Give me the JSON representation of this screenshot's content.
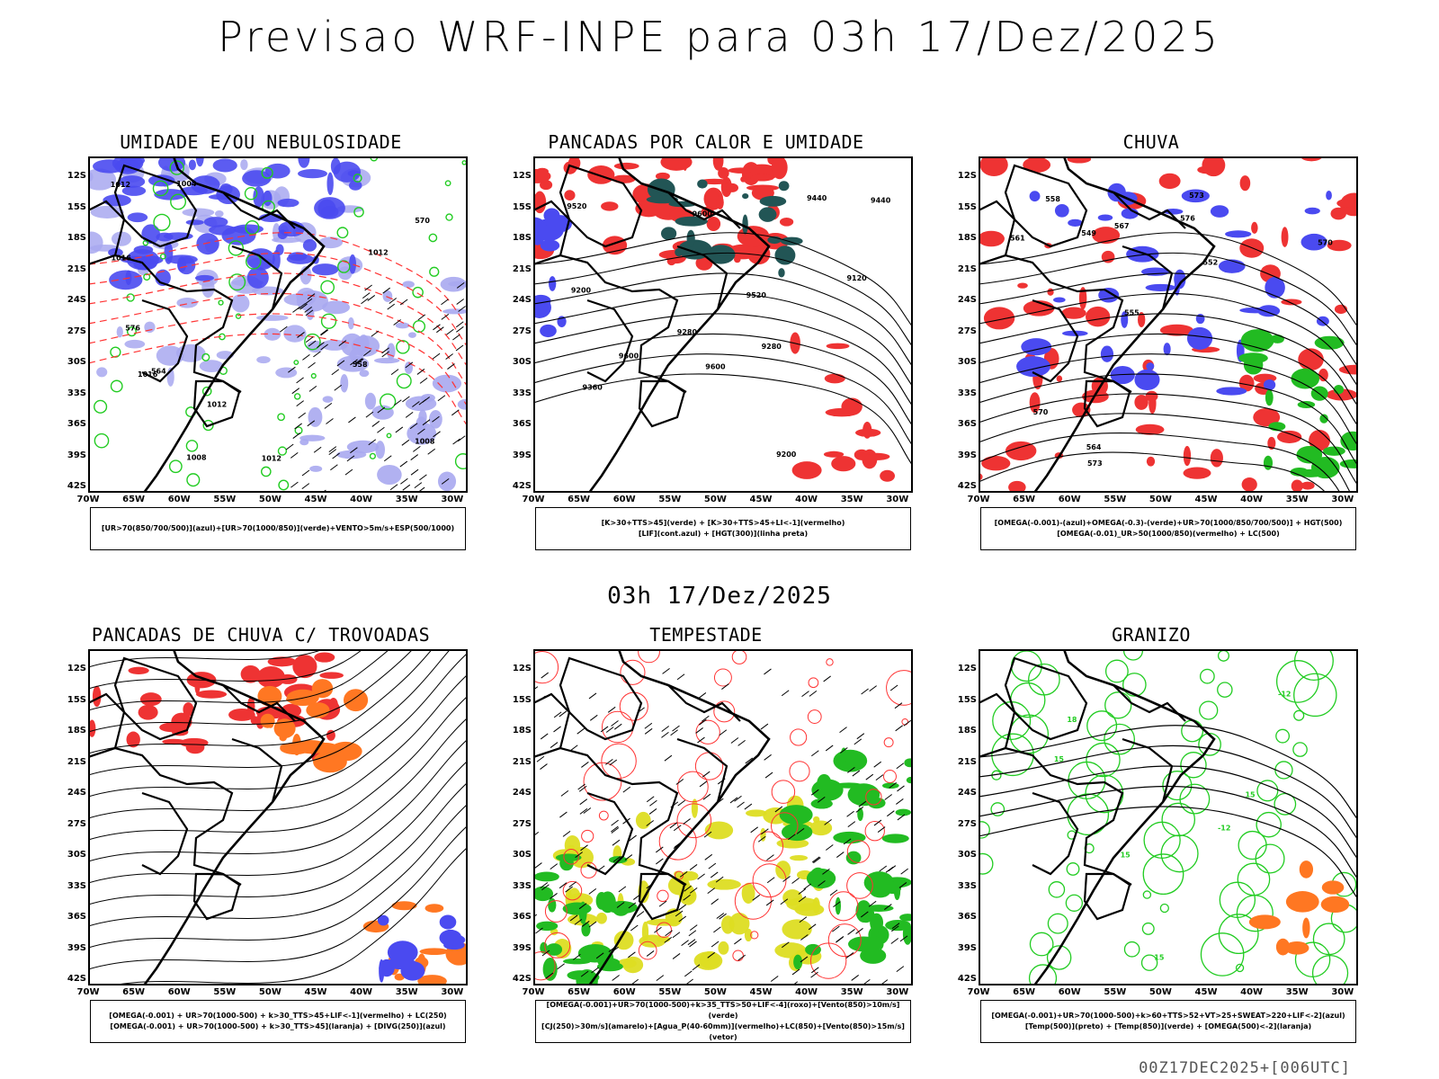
{
  "title": "Previsao WRF-INPE  para 03h 17/Dez/2025",
  "mid_title": "03h 17/Dez/2025",
  "footer": "00Z17DEC2025+[006UTC]",
  "axes": {
    "lat_labels": [
      "12S",
      "15S",
      "18S",
      "21S",
      "24S",
      "27S",
      "30S",
      "33S",
      "36S",
      "39S",
      "42S"
    ],
    "lon_labels": [
      "70W",
      "65W",
      "60W",
      "55W",
      "50W",
      "45W",
      "40W",
      "35W",
      "30W"
    ]
  },
  "panels": [
    {
      "title": "UMIDADE E/OU NEBULOSIDADE",
      "legend": [
        "[UR>70(850/700/500)](azul)+[UR>70(1000/850)](verde)+VENTO>5m/s+ESP(500/1000)"
      ],
      "contour_labels": [
        "1012",
        "1012",
        "1012",
        "1012",
        "1016",
        "1008",
        "1008",
        "1016",
        "1004",
        "570",
        "576",
        "564",
        "558"
      ]
    },
    {
      "title": "PANCADAS POR CALOR E UMIDADE",
      "legend": [
        "[K>30+TTS>45](verde) + [K>30+TTS>45+LI<-1](vermelho)",
        "[LIF](cont.azul) + [HGT(300)](linha preta)"
      ],
      "contour_labels": [
        "9600",
        "9600",
        "9600",
        "9520",
        "9520",
        "9440",
        "9440",
        "9360",
        "9280",
        "9200",
        "9120",
        "9280",
        "9200"
      ]
    },
    {
      "title": "CHUVA",
      "legend": [
        "[OMEGA(-0.001)-(azul)+OMEGA(-0.3)-(verde)+UR>70(1000/850/700/500)] + HGT(500)",
        "[OMEGA(-0.01)_UR>50(1000/850)(vermelho) + LC(500)"
      ],
      "contour_labels": [
        "576",
        "573",
        "570",
        "567",
        "564",
        "561",
        "558",
        "555",
        "552",
        "549",
        "573",
        "570"
      ]
    },
    {
      "title": "PANCADAS DE CHUVA C/ TROVOADAS",
      "legend": [
        "[OMEGA(-0.001) + UR>70(1000-500) + k>30_TTS>45+LIF<-1](vermelho) + LC(250)",
        "[OMEGA(-0.001) + UR>70(1000-500) + k>30_TTS>45](laranja) + [DIVG(250)](azul)"
      ],
      "contour_labels": []
    },
    {
      "title": "TEMPESTADE",
      "legend": [
        "[OMEGA(-0.001)+UR>70(1000-500)+k>35_TTS>50+LIF<-4](roxo)+[Vento(850)>10m/s](verde)",
        "[CJ(250)>30m/s](amarelo)+[Agua_P(40-60mm)](vermelho)+LC(850)+[Vento(850)>15m/s](vetor)"
      ],
      "contour_labels": []
    },
    {
      "title": "GRANIZO",
      "legend": [
        "[OMEGA(-0.001)+UR>70(1000-500)+k>60+TTS>52+VT>25+SWEAT>220+LIF<-2](azul)",
        "[Temp(500)](preto) + [Temp(850)](verde) + [OMEGA(500)<-2](laranja)"
      ],
      "contour_labels": [
        "-12",
        "-12",
        "15",
        "15",
        "15",
        "15",
        "18"
      ]
    }
  ],
  "colors": {
    "blue_fill": "#4a4af0",
    "light_blue_fill": "#a8a8f0",
    "green_line": "#22cc22",
    "green_fill": "#22bb22",
    "red_fill": "#ee3333",
    "red_line": "#ff3333",
    "orange_fill": "#ff7722",
    "yellow_fill": "#dddd22",
    "teal_fill": "#225555",
    "black": "#000000"
  }
}
